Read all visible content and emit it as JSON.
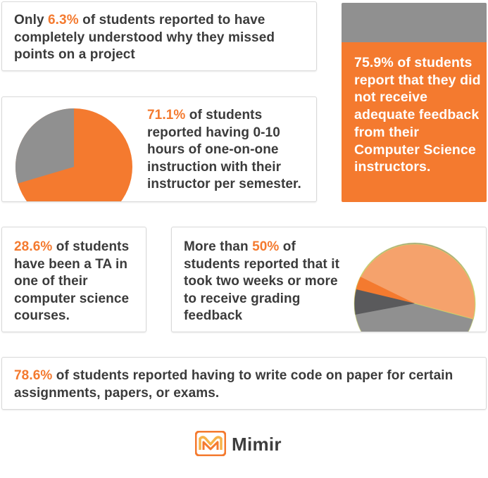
{
  "stats": {
    "missed_points": {
      "pre": "Only ",
      "pct": "6.3%",
      "post": " of students reported to have completely understood why they missed points on a project"
    },
    "feedback": {
      "pct": "75.9%",
      "post": " of students report that they did not receive adequate feedback from their Computer Science instructors."
    },
    "one_on_one": {
      "pct": "71.1%",
      "post": " of students reported having 0-10 hours of one-on-one instruction with their instructor per semester."
    },
    "ta": {
      "pct": "28.6%",
      "post": " of students have been a TA in one of their computer science courses."
    },
    "grading": {
      "pre": "More than ",
      "pct": "50%",
      "post": " of students reported that it took two weeks or more to receive grading feedback"
    },
    "paper_code": {
      "pct": "78.6%",
      "post": " of students reported having to write code on paper for certain assignments, papers, or exams."
    }
  },
  "logo": {
    "name": "Mimir",
    "icon": "mimir-logo-icon"
  },
  "colors": {
    "accent": "#f47a2f",
    "grey": "#909090",
    "dark": "#5a5a5c",
    "light_orange": "#f5a26c"
  }
}
